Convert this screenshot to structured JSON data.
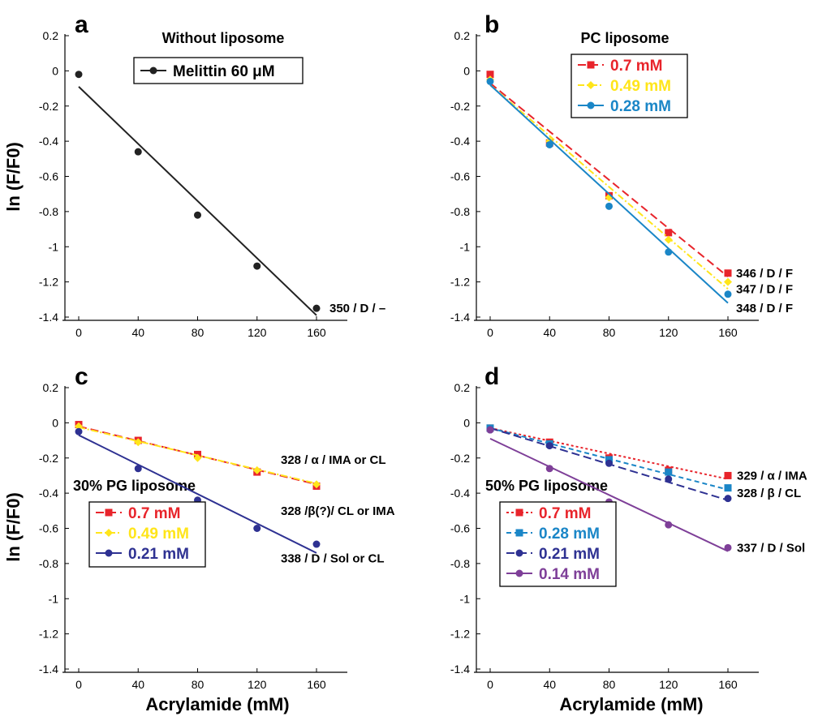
{
  "figure": {
    "ylabel_top": "ln (F/F0)",
    "ylabel_bottom": "ln (F/F0)",
    "xlabel_left": "Acrylamide (mM)",
    "xlabel_right": "Acrylamide (mM)"
  },
  "chart_data": [
    {
      "type": "scatter",
      "panel": "a",
      "title": "Without liposome",
      "xlabel": "",
      "ylabel": "ln (F/F0)",
      "xlim": [
        -5,
        175
      ],
      "ylim": [
        -1.4,
        0.25
      ],
      "xticks": [
        0,
        40,
        80,
        120,
        160
      ],
      "yticks": [
        0.2,
        0,
        -0.2,
        -0.4,
        -0.6,
        -0.8,
        -1,
        -1.2,
        -1.4
      ],
      "xtick_labels": [
        "0",
        "40",
        "80",
        "120",
        "160"
      ],
      "ytick_labels": [
        "0.2",
        "0",
        "-0.2",
        "-0.4",
        "-0.6",
        "-0.8",
        "-1",
        "-1.2",
        "-1.4"
      ],
      "x": [
        0,
        40,
        80,
        120,
        160
      ],
      "series": [
        {
          "name": "Melittin 60 μM",
          "color": "#222222",
          "marker": "circle",
          "dash": "solid",
          "values": [
            -0.02,
            -0.46,
            -0.82,
            -1.11,
            -1.35
          ],
          "fit": [
            -0.09,
            -1.39
          ]
        }
      ],
      "annotations": [
        {
          "text": "350 / D / –",
          "x": 160,
          "y": -1.35
        }
      ],
      "legend_loc": "top-right"
    },
    {
      "type": "scatter",
      "panel": "b",
      "title": "PC liposome",
      "xlabel": "",
      "ylabel": "",
      "xlim": [
        -5,
        175
      ],
      "ylim": [
        -1.4,
        0.25
      ],
      "xticks": [
        0,
        40,
        80,
        120,
        160
      ],
      "yticks": [
        0.2,
        0,
        -0.2,
        -0.4,
        -0.6,
        -0.8,
        -1,
        -1.2,
        -1.4
      ],
      "xtick_labels": [
        "0",
        "40",
        "80",
        "120",
        "160"
      ],
      "ytick_labels": [
        "0.2",
        "0",
        "-0.2",
        "-0.4",
        "-0.6",
        "-0.8",
        "-1",
        "-1.2",
        "-1.4"
      ],
      "x": [
        0,
        40,
        80,
        120,
        160
      ],
      "series": [
        {
          "name": "0.7 mM",
          "color": "#e8242b",
          "marker": "square",
          "dash": "long-dash",
          "values": [
            -0.02,
            -0.41,
            -0.71,
            -0.92,
            -1.15
          ],
          "fit": [
            -0.07,
            -1.17
          ]
        },
        {
          "name": "0.49 mM",
          "color": "#ffe51a",
          "marker": "diamond",
          "dash": "dash-dot",
          "values": [
            -0.05,
            -0.4,
            -0.72,
            -0.96,
            -1.2
          ],
          "fit": [
            -0.08,
            -1.24
          ]
        },
        {
          "name": "0.28 mM",
          "color": "#1a86c7",
          "marker": "circle",
          "dash": "solid",
          "values": [
            -0.06,
            -0.42,
            -0.77,
            -1.03,
            -1.27
          ],
          "fit": [
            -0.08,
            -1.32
          ]
        }
      ],
      "annotations": [
        {
          "text": "346 / D / F",
          "x": 160,
          "y": -1.15
        },
        {
          "text": "347 / D / F",
          "x": 160,
          "y": -1.24
        },
        {
          "text": "348 / D / F",
          "x": 160,
          "y": -1.33
        }
      ],
      "legend_loc": "top-left"
    },
    {
      "type": "scatter",
      "panel": "c",
      "title": "30% PG liposome",
      "xlabel": "Acrylamide (mM)",
      "ylabel": "ln (F/F0)",
      "xlim": [
        -5,
        175
      ],
      "ylim": [
        -1.4,
        0.25
      ],
      "xticks": [
        0,
        40,
        80,
        120,
        160
      ],
      "yticks": [
        0.2,
        0,
        -0.2,
        -0.4,
        -0.6,
        -0.8,
        -1,
        -1.2,
        -1.4
      ],
      "xtick_labels": [
        "0",
        "40",
        "80",
        "120",
        "160"
      ],
      "ytick_labels": [
        "0.2",
        "0",
        "-0.2",
        "-0.4",
        "-0.6",
        "-0.8",
        "-1",
        "-1.2",
        "-1.4"
      ],
      "x": [
        0,
        40,
        80,
        120,
        160
      ],
      "series": [
        {
          "name": "0.7 mM",
          "color": "#e8242b",
          "marker": "square",
          "dash": "long-dash",
          "values": [
            -0.01,
            -0.1,
            -0.18,
            -0.28,
            -0.36
          ],
          "fit": [
            -0.02,
            -0.35
          ]
        },
        {
          "name": "0.49 mM",
          "color": "#ffe51a",
          "marker": "diamond",
          "dash": "dash-dot",
          "values": [
            -0.02,
            -0.11,
            -0.2,
            -0.27,
            -0.35
          ],
          "fit": [
            -0.025,
            -0.345
          ]
        },
        {
          "name": "0.21 mM",
          "color": "#2e3192",
          "marker": "circle",
          "dash": "solid",
          "values": [
            -0.05,
            -0.26,
            -0.44,
            -0.6,
            -0.69
          ],
          "fit": [
            -0.07,
            -0.74
          ]
        }
      ],
      "annotations": [
        {
          "text": "328 / α / IMA or CL",
          "x": 140,
          "y": -0.21
        },
        {
          "text": "328 /β(?)/ CL or IMA",
          "x": 140,
          "y": -0.5
        },
        {
          "text": "338 / D / Sol or CL",
          "x": 140,
          "y": -0.77
        }
      ],
      "legend_loc": "bottom-left"
    },
    {
      "type": "scatter",
      "panel": "d",
      "title": "50% PG liposome",
      "xlabel": "Acrylamide (mM)",
      "ylabel": "",
      "xlim": [
        -5,
        175
      ],
      "ylim": [
        -1.4,
        0.25
      ],
      "xticks": [
        0,
        40,
        80,
        120,
        160
      ],
      "yticks": [
        0.2,
        0,
        -0.2,
        -0.4,
        -0.6,
        -0.8,
        -1,
        -1.2,
        -1.4
      ],
      "xtick_labels": [
        "0",
        "40",
        "80",
        "120",
        "160"
      ],
      "ytick_labels": [
        "0.2",
        "0",
        "-0.2",
        "-0.4",
        "-0.6",
        "-0.8",
        "-1",
        "-1.2",
        "-1.4"
      ],
      "x": [
        0,
        40,
        80,
        120,
        160
      ],
      "series": [
        {
          "name": "0.7 mM",
          "color": "#e8242b",
          "marker": "square",
          "dash": "dotted",
          "values": [
            -0.03,
            -0.11,
            -0.2,
            -0.27,
            -0.3
          ],
          "fit": [
            -0.03,
            -0.32
          ]
        },
        {
          "name": "0.28 mM",
          "color": "#1a86c7",
          "marker": "square",
          "dash": "dashed",
          "values": [
            -0.03,
            -0.12,
            -0.21,
            -0.28,
            -0.37
          ],
          "fit": [
            -0.03,
            -0.38
          ]
        },
        {
          "name": "0.21 mM",
          "color": "#2e3192",
          "marker": "circle",
          "dash": "long-dash",
          "values": [
            -0.04,
            -0.13,
            -0.23,
            -0.32,
            -0.43
          ],
          "fit": [
            -0.03,
            -0.44
          ]
        },
        {
          "name": "0.14 mM",
          "color": "#7e3f98",
          "marker": "circle",
          "dash": "solid",
          "values": [
            -0.04,
            -0.26,
            -0.45,
            -0.58,
            -0.71
          ],
          "fit": [
            -0.09,
            -0.73
          ]
        }
      ],
      "annotations": [
        {
          "text": "329 / α / IMA",
          "x": 160,
          "y": -0.3
        },
        {
          "text": "328 / β / CL",
          "x": 160,
          "y": -0.4
        },
        {
          "text": "337 / D / Sol",
          "x": 160,
          "y": -0.71
        }
      ],
      "legend_loc": "bottom-left"
    }
  ]
}
